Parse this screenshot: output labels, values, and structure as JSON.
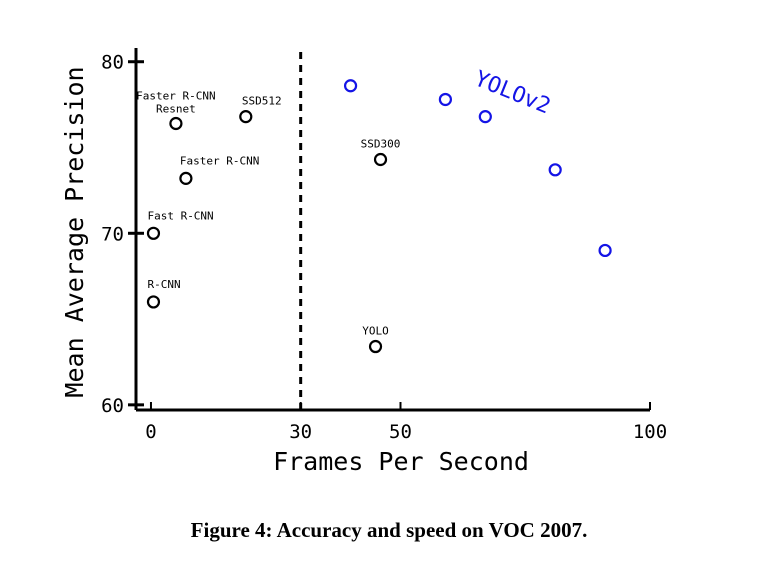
{
  "caption": "Figure 4: Accuracy and speed on VOC 2007.",
  "colors": {
    "axis": "#000000",
    "marker_black": "#000000",
    "marker_blue": "#1414e6"
  },
  "chart_data": {
    "type": "scatter",
    "title": "",
    "xlabel": "Frames Per Second",
    "ylabel": "Mean Average Precision",
    "xlim": [
      -3,
      100
    ],
    "ylim": [
      59.7,
      80.8
    ],
    "xticks": [
      0,
      30,
      50,
      100
    ],
    "yticks": [
      60,
      70,
      80
    ],
    "grid": false,
    "reference_line": {
      "x": 30,
      "style": "dashed"
    },
    "series": [
      {
        "color": "#000000",
        "points": [
          {
            "label": "R-CNN",
            "x": 0.5,
            "y": 66.0
          },
          {
            "label": "Fast R-CNN",
            "x": 0.5,
            "y": 70.0
          },
          {
            "label": "Faster R-CNN",
            "x": 7,
            "y": 73.2
          },
          {
            "label": "Faster R-CNN Resnet",
            "x": 5,
            "y": 76.4
          },
          {
            "label": "SSD512",
            "x": 19,
            "y": 76.8
          },
          {
            "label": "SSD300",
            "x": 46,
            "y": 74.3
          },
          {
            "label": "YOLO",
            "x": 45,
            "y": 63.4
          }
        ]
      },
      {
        "name": "YOLOv2",
        "color": "#1414e6",
        "points": [
          {
            "x": 40,
            "y": 78.6
          },
          {
            "x": 59,
            "y": 77.8
          },
          {
            "x": 67,
            "y": 76.8
          },
          {
            "x": 81,
            "y": 73.7
          },
          {
            "x": 91,
            "y": 69.0
          }
        ]
      }
    ]
  }
}
